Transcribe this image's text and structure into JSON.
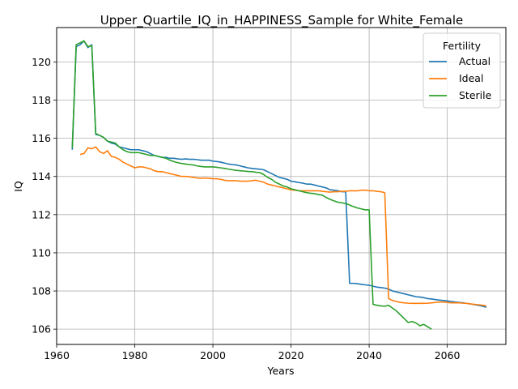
{
  "chart_data": {
    "type": "line",
    "title": "Upper_Quartile_IQ_in_HAPPINESS_Sample for White_Female",
    "xlabel": "Years",
    "ylabel": "IQ",
    "xlim": [
      1960,
      2075
    ],
    "ylim": [
      105.2,
      121.8
    ],
    "xticks": [
      1960,
      1980,
      2000,
      2020,
      2040,
      2060
    ],
    "yticks": [
      106,
      108,
      110,
      112,
      114,
      116,
      118,
      120
    ],
    "grid": true,
    "legend": {
      "title": "Fertility",
      "placement": "top-right"
    },
    "series": [
      {
        "name": "Actual",
        "color": "#1f77b4",
        "x": [
          1964,
          1965,
          1966,
          1967,
          1968,
          1969,
          1970,
          1971,
          1972,
          1973,
          1974,
          1975,
          1976,
          1977,
          1978,
          1979,
          1980,
          1981,
          1982,
          1983,
          1984,
          1985,
          1986,
          1987,
          1988,
          1989,
          1990,
          1991,
          1992,
          1993,
          1994,
          1995,
          1996,
          1997,
          1998,
          1999,
          2000,
          2001,
          2002,
          2003,
          2004,
          2005,
          2006,
          2007,
          2008,
          2009,
          2010,
          2011,
          2012,
          2013,
          2014,
          2015,
          2016,
          2017,
          2018,
          2019,
          2020,
          2021,
          2022,
          2023,
          2024,
          2025,
          2026,
          2027,
          2028,
          2029,
          2030,
          2031,
          2032,
          2033,
          2034,
          2035,
          2036,
          2037,
          2038,
          2039,
          2040,
          2041,
          2042,
          2043,
          2044,
          2045,
          2046,
          2047,
          2048,
          2049,
          2050,
          2051,
          2052,
          2053,
          2054,
          2055,
          2056,
          2057,
          2058,
          2059,
          2060,
          2061,
          2062,
          2063,
          2064,
          2065,
          2066,
          2067,
          2068,
          2069,
          2070
        ],
        "values": [
          115.4,
          120.8,
          120.9,
          121.1,
          120.75,
          120.9,
          116.2,
          116.15,
          116.05,
          115.85,
          115.75,
          115.7,
          115.55,
          115.5,
          115.45,
          115.4,
          115.4,
          115.4,
          115.35,
          115.3,
          115.2,
          115.1,
          115.05,
          115.0,
          115.0,
          114.95,
          114.95,
          114.92,
          114.9,
          114.92,
          114.9,
          114.9,
          114.88,
          114.85,
          114.85,
          114.85,
          114.8,
          114.78,
          114.75,
          114.7,
          114.65,
          114.62,
          114.6,
          114.55,
          114.5,
          114.45,
          114.42,
          114.4,
          114.38,
          114.35,
          114.25,
          114.15,
          114.05,
          113.95,
          113.9,
          113.85,
          113.75,
          113.72,
          113.68,
          113.65,
          113.6,
          113.6,
          113.55,
          113.5,
          113.45,
          113.4,
          113.3,
          113.28,
          113.25,
          113.2,
          113.2,
          108.4,
          108.4,
          108.38,
          108.35,
          108.32,
          108.3,
          108.25,
          108.2,
          108.18,
          108.15,
          108.1,
          108.0,
          107.95,
          107.9,
          107.85,
          107.8,
          107.75,
          107.7,
          107.68,
          107.65,
          107.6,
          107.58,
          107.55,
          107.52,
          107.5,
          107.48,
          107.45,
          107.42,
          107.4,
          107.38,
          107.35,
          107.32,
          107.28,
          107.25,
          107.2,
          107.15
        ]
      },
      {
        "name": "Ideal",
        "color": "#ff7f0e",
        "x": [
          1966,
          1967,
          1968,
          1969,
          1970,
          1971,
          1972,
          1973,
          1974,
          1975,
          1976,
          1977,
          1978,
          1979,
          1980,
          1981,
          1982,
          1983,
          1984,
          1985,
          1986,
          1987,
          1988,
          1989,
          1990,
          1991,
          1992,
          1993,
          1994,
          1995,
          1996,
          1997,
          1998,
          1999,
          2000,
          2001,
          2002,
          2003,
          2004,
          2005,
          2006,
          2007,
          2008,
          2009,
          2010,
          2011,
          2012,
          2013,
          2014,
          2015,
          2016,
          2017,
          2018,
          2019,
          2020,
          2021,
          2022,
          2023,
          2024,
          2025,
          2026,
          2027,
          2028,
          2029,
          2030,
          2031,
          2032,
          2033,
          2034,
          2035,
          2036,
          2037,
          2038,
          2039,
          2040,
          2041,
          2042,
          2043,
          2044,
          2045,
          2046,
          2047,
          2048,
          2049,
          2050,
          2051,
          2052,
          2053,
          2054,
          2055,
          2056,
          2057,
          2058,
          2059,
          2060,
          2061,
          2062,
          2063,
          2064,
          2065,
          2066,
          2067,
          2068,
          2069,
          2070
        ],
        "values": [
          115.15,
          115.2,
          115.5,
          115.45,
          115.55,
          115.3,
          115.2,
          115.35,
          115.05,
          115.0,
          114.9,
          114.75,
          114.65,
          114.55,
          114.45,
          114.5,
          114.5,
          114.45,
          114.4,
          114.3,
          114.25,
          114.25,
          114.2,
          114.15,
          114.1,
          114.05,
          114.0,
          114.0,
          113.98,
          113.95,
          113.92,
          113.9,
          113.92,
          113.9,
          113.88,
          113.88,
          113.85,
          113.8,
          113.78,
          113.78,
          113.78,
          113.75,
          113.75,
          113.75,
          113.78,
          113.8,
          113.75,
          113.7,
          113.6,
          113.55,
          113.5,
          113.45,
          113.4,
          113.35,
          113.3,
          113.28,
          113.25,
          113.25,
          113.25,
          113.25,
          113.25,
          113.25,
          113.22,
          113.2,
          113.18,
          113.2,
          113.2,
          113.22,
          113.22,
          113.25,
          113.25,
          113.25,
          113.28,
          113.28,
          113.25,
          113.25,
          113.22,
          113.2,
          113.15,
          107.6,
          107.5,
          107.45,
          107.4,
          107.38,
          107.36,
          107.35,
          107.35,
          107.35,
          107.35,
          107.36,
          107.38,
          107.4,
          107.42,
          107.42,
          107.4,
          107.38,
          107.38,
          107.38,
          107.36,
          107.35,
          107.32,
          107.3,
          107.28,
          107.25,
          107.22
        ]
      },
      {
        "name": "Sterile",
        "color": "#2ca02c",
        "x": [
          1964,
          1965,
          1966,
          1967,
          1968,
          1969,
          1970,
          1971,
          1972,
          1973,
          1974,
          1975,
          1976,
          1977,
          1978,
          1979,
          1980,
          1981,
          1982,
          1983,
          1984,
          1985,
          1986,
          1987,
          1988,
          1989,
          1990,
          1991,
          1992,
          1993,
          1994,
          1995,
          1996,
          1997,
          1998,
          1999,
          2000,
          2001,
          2002,
          2003,
          2004,
          2005,
          2006,
          2007,
          2008,
          2009,
          2010,
          2011,
          2012,
          2013,
          2014,
          2015,
          2016,
          2017,
          2018,
          2019,
          2020,
          2021,
          2022,
          2023,
          2024,
          2025,
          2026,
          2027,
          2028,
          2029,
          2030,
          2031,
          2032,
          2033,
          2034,
          2035,
          2036,
          2037,
          2038,
          2039,
          2040,
          2041,
          2042,
          2043,
          2044,
          2045,
          2046,
          2047,
          2048,
          2049,
          2050,
          2051,
          2052,
          2053,
          2054,
          2055,
          2056
        ],
        "values": [
          115.5,
          120.9,
          121.0,
          121.1,
          120.8,
          120.85,
          116.25,
          116.15,
          116.05,
          115.85,
          115.8,
          115.75,
          115.55,
          115.4,
          115.3,
          115.25,
          115.25,
          115.25,
          115.2,
          115.15,
          115.1,
          115.1,
          115.05,
          115.0,
          114.95,
          114.85,
          114.78,
          114.72,
          114.68,
          114.65,
          114.62,
          114.6,
          114.55,
          114.52,
          114.5,
          114.5,
          114.5,
          114.48,
          114.45,
          114.42,
          114.38,
          114.35,
          114.32,
          114.3,
          114.28,
          114.26,
          114.25,
          114.22,
          114.2,
          114.1,
          113.95,
          113.85,
          113.7,
          113.6,
          113.5,
          113.45,
          113.35,
          113.3,
          113.25,
          113.2,
          113.15,
          113.12,
          113.1,
          113.05,
          113.02,
          112.9,
          112.8,
          112.72,
          112.65,
          112.62,
          112.58,
          112.5,
          112.42,
          112.35,
          112.3,
          112.25,
          112.25,
          107.3,
          107.25,
          107.22,
          107.2,
          107.25,
          107.1,
          106.95,
          106.75,
          106.55,
          106.35,
          106.4,
          106.32,
          106.18,
          106.25,
          106.12,
          106.0
        ]
      }
    ]
  }
}
